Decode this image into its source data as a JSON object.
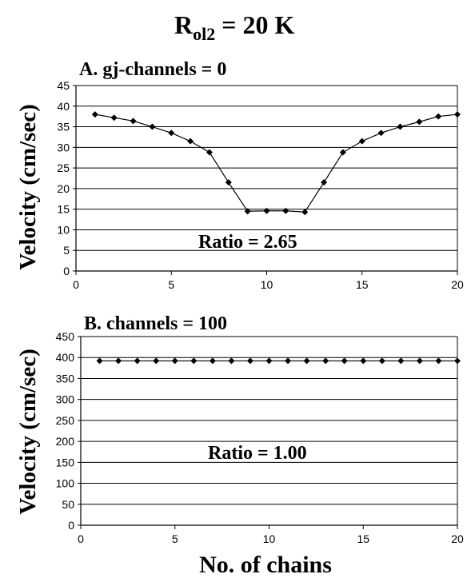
{
  "figure": {
    "title_main": "R",
    "title_sub": "ol2",
    "title_rest": " = 20  K",
    "ylabel": "Velocity (cm/sec)",
    "xlabel": "No. of chains"
  },
  "chart_data": [
    {
      "type": "line",
      "title": "A. gj-channels = 0",
      "annotation": "Ratio = 2.65",
      "xlim": [
        0,
        20
      ],
      "ylim": [
        0,
        45
      ],
      "xticks": [
        0,
        5,
        10,
        15,
        20
      ],
      "yticks": [
        0,
        5,
        10,
        15,
        20,
        25,
        30,
        35,
        40,
        45
      ],
      "grid": "horizontal",
      "x": [
        1,
        2,
        3,
        4,
        5,
        6,
        7,
        8,
        9,
        10,
        11,
        12,
        13,
        14,
        15,
        16,
        17,
        18,
        19,
        20
      ],
      "y": [
        38.0,
        37.2,
        36.4,
        35.0,
        33.5,
        31.5,
        28.8,
        21.5,
        14.5,
        14.6,
        14.6,
        14.3,
        21.5,
        28.8,
        31.5,
        33.5,
        35.0,
        36.2,
        37.5,
        38.0
      ]
    },
    {
      "type": "line",
      "title": "B. channels = 100",
      "annotation": "Ratio = 1.00",
      "xlim": [
        0,
        20
      ],
      "ylim": [
        0,
        450
      ],
      "xticks": [
        0,
        5,
        10,
        15,
        20
      ],
      "yticks": [
        0,
        50,
        100,
        150,
        200,
        250,
        300,
        350,
        400,
        450
      ],
      "grid": "horizontal",
      "x": [
        1,
        2,
        3,
        4,
        5,
        6,
        7,
        8,
        9,
        10,
        11,
        12,
        13,
        14,
        15,
        16,
        17,
        18,
        19,
        20
      ],
      "y": [
        392,
        392,
        392,
        392,
        392,
        392,
        392,
        392,
        392,
        392,
        392,
        392,
        392,
        392,
        392,
        392,
        392,
        392,
        392,
        392
      ]
    }
  ]
}
